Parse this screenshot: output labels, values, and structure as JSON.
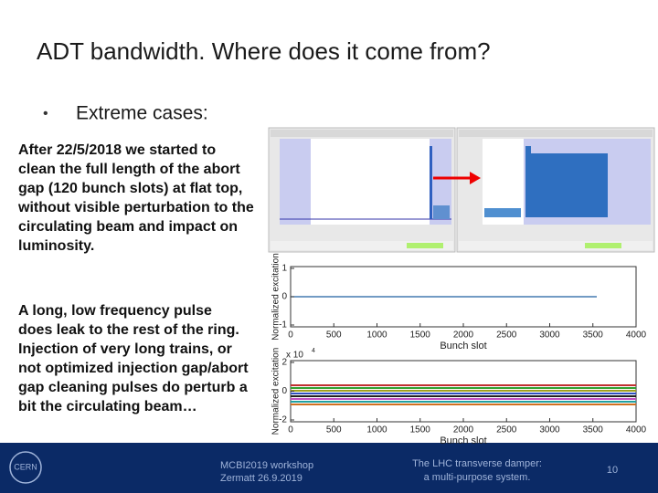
{
  "title": "ADT bandwidth. Where does it come from?",
  "bullet": {
    "marker": "•",
    "text": "Extreme cases:"
  },
  "paragraphs": [
    [
      "After 22/5/2018 we started to",
      "clean the full length of the abort",
      "gap (120 bunch slots) at flat top,",
      "without visible perturbation to the",
      "circulating beam and impact on",
      "luminosity."
    ],
    [
      "A long, low frequency pulse",
      "does leak to the rest of the ring.",
      "Injection of very long trains, or",
      "not optimized injection gap/abort",
      "gap cleaning pulses do perturb a",
      "bit the circulating beam…"
    ]
  ],
  "plots": [
    {
      "y_label": "Normalized excitation",
      "x_label": "Bunch slot",
      "yticks": [
        1,
        0,
        -1
      ],
      "xticks": [
        0,
        500,
        1000,
        1500,
        2000,
        2500,
        3000,
        3500,
        4000
      ]
    },
    {
      "y_label": "Normalized excitation",
      "x_label": "Bunch slot",
      "multiplier": {
        "base": "x 10",
        "exponent": "4"
      },
      "yticks": [
        2,
        0,
        -2
      ],
      "xticks": [
        0,
        500,
        1000,
        1500,
        2000,
        2500,
        3000,
        3500,
        4000
      ]
    }
  ],
  "footer": {
    "logo": "CERN",
    "event": [
      "MCBI2019 workshop",
      "Zermatt 26.9.2019"
    ],
    "talk": [
      "The LHC transverse damper:",
      "a multi-purpose system."
    ],
    "page": "10"
  }
}
